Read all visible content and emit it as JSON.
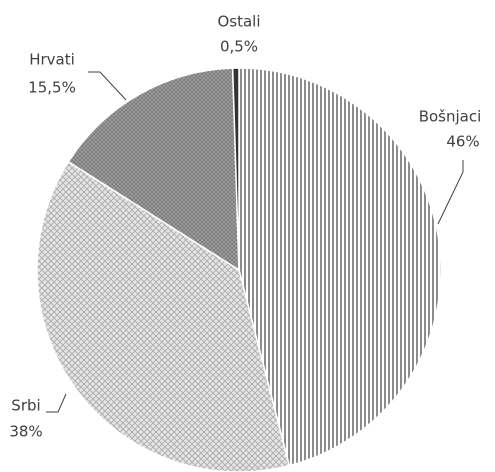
{
  "chart_data": {
    "type": "pie",
    "categories": [
      "Bošnjaci",
      "Srbi",
      "Hrvati",
      "Ostali"
    ],
    "values": [
      46,
      38,
      15.5,
      0.5
    ],
    "value_labels": [
      "46%",
      "38%",
      "15,5%",
      "0,5%"
    ]
  }
}
